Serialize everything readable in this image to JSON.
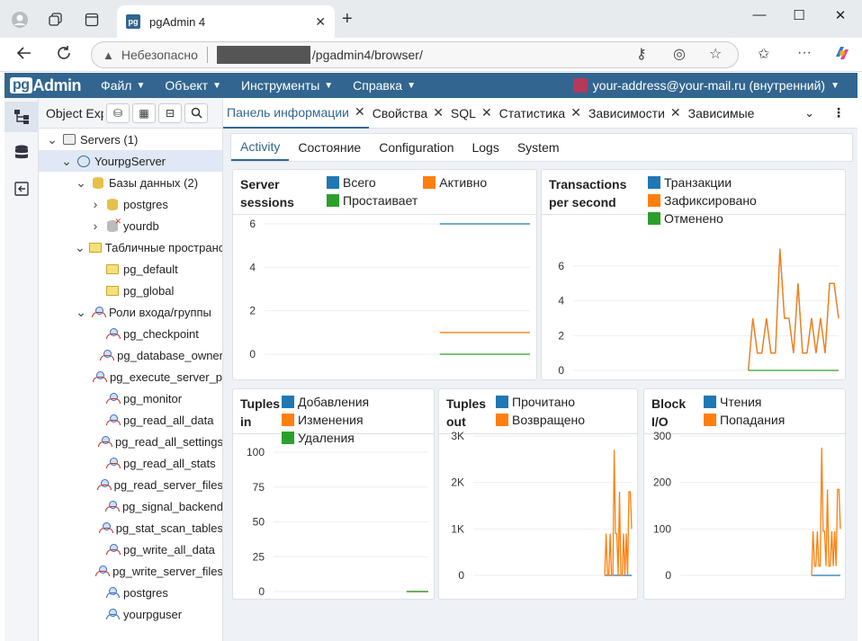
{
  "browser": {
    "tab_title": "pgAdmin 4",
    "tab_icon_text": "pg",
    "security_label": "Небезопасно",
    "url_path": "/pgadmin4/browser/"
  },
  "header": {
    "logo_pg": "pg",
    "logo_admin": "Admin",
    "menus": [
      "Файл",
      "Объект",
      "Инструменты",
      "Справка"
    ],
    "user": "your-address@your-mail.ru (внутренний)"
  },
  "explorer": {
    "tab_label": "Object Explorer",
    "tree": [
      {
        "label": "Servers (1)",
        "depth": 0,
        "toggle": "v",
        "icon": "server"
      },
      {
        "label": "YourpgServer",
        "depth": 1,
        "toggle": "v",
        "icon": "elephant",
        "selected": true
      },
      {
        "label": "Базы данных (2)",
        "depth": 2,
        "toggle": "v",
        "icon": "db"
      },
      {
        "label": "postgres",
        "depth": 3,
        "toggle": ">",
        "icon": "db"
      },
      {
        "label": "yourdb",
        "depth": 3,
        "toggle": ">",
        "icon": "db-x"
      },
      {
        "label": "Табличные пространства",
        "depth": 2,
        "toggle": "v",
        "icon": "folder"
      },
      {
        "label": "pg_default",
        "depth": 3,
        "toggle": "",
        "icon": "folder"
      },
      {
        "label": "pg_global",
        "depth": 3,
        "toggle": "",
        "icon": "folder"
      },
      {
        "label": "Роли входа/группы",
        "depth": 2,
        "toggle": "v",
        "icon": "role"
      },
      {
        "label": "pg_checkpoint",
        "depth": 3,
        "toggle": "",
        "icon": "role"
      },
      {
        "label": "pg_database_owner",
        "depth": 3,
        "toggle": "",
        "icon": "role"
      },
      {
        "label": "pg_execute_server_program",
        "depth": 3,
        "toggle": "",
        "icon": "role"
      },
      {
        "label": "pg_monitor",
        "depth": 3,
        "toggle": "",
        "icon": "role"
      },
      {
        "label": "pg_read_all_data",
        "depth": 3,
        "toggle": "",
        "icon": "role"
      },
      {
        "label": "pg_read_all_settings",
        "depth": 3,
        "toggle": "",
        "icon": "role"
      },
      {
        "label": "pg_read_all_stats",
        "depth": 3,
        "toggle": "",
        "icon": "role"
      },
      {
        "label": "pg_read_server_files",
        "depth": 3,
        "toggle": "",
        "icon": "role"
      },
      {
        "label": "pg_signal_backend",
        "depth": 3,
        "toggle": "",
        "icon": "role"
      },
      {
        "label": "pg_stat_scan_tables",
        "depth": 3,
        "toggle": "",
        "icon": "role"
      },
      {
        "label": "pg_write_all_data",
        "depth": 3,
        "toggle": "",
        "icon": "role"
      },
      {
        "label": "pg_write_server_files",
        "depth": 3,
        "toggle": "",
        "icon": "role"
      },
      {
        "label": "postgres",
        "depth": 3,
        "toggle": "",
        "icon": "user"
      },
      {
        "label": "yourpguser",
        "depth": 3,
        "toggle": "",
        "icon": "user"
      }
    ]
  },
  "main_tabs": [
    "Панель информации",
    "Свойства",
    "SQL",
    "Статистика",
    "Зависимости",
    "Зависимые"
  ],
  "sub_tabs": [
    "Activity",
    "Состояние",
    "Configuration",
    "Logs",
    "System"
  ],
  "colors": {
    "blue": "#1f77b4",
    "orange": "#ff7f0e",
    "green": "#2ca02c",
    "brand": "#326690"
  },
  "chart_data": [
    {
      "type": "line",
      "title_lines": [
        "Server",
        "sessions"
      ],
      "yticks": [
        "6",
        "4",
        "2",
        "0"
      ],
      "ylim": [
        0,
        6
      ],
      "series": [
        {
          "name": "Всего",
          "values": [
            6,
            6,
            6,
            6,
            6,
            6,
            6,
            6,
            6,
            6,
            6,
            6,
            6,
            6,
            6,
            6,
            6,
            6,
            6,
            6
          ]
        },
        {
          "name": "Активно",
          "values": [
            1,
            1,
            1,
            1,
            1,
            1,
            1,
            1,
            1,
            1,
            1,
            1,
            1,
            1,
            1,
            1,
            1,
            1,
            1,
            1
          ]
        },
        {
          "name": "Простаивает",
          "values": [
            0,
            0,
            0,
            0,
            0,
            0,
            0,
            0,
            0,
            0,
            0,
            0,
            0,
            0,
            0,
            0,
            0,
            0,
            0,
            0
          ]
        }
      ]
    },
    {
      "type": "line",
      "title_lines": [
        "Transactions",
        "per second"
      ],
      "yticks": [
        "6",
        "4",
        "2",
        "0"
      ],
      "ylim": [
        0,
        7.5
      ],
      "series": [
        {
          "name": "Транзакции",
          "values": [
            0,
            3,
            1,
            1,
            3,
            1,
            1,
            7,
            3,
            3,
            1,
            5,
            1,
            1,
            3,
            1,
            3,
            1,
            5,
            5,
            3
          ]
        },
        {
          "name": "Зафиксировано",
          "values": [
            0,
            3,
            1,
            1,
            3,
            1,
            1,
            7,
            3,
            3,
            1,
            5,
            1,
            1,
            3,
            1,
            3,
            1,
            5,
            5,
            3
          ]
        },
        {
          "name": "Отменено",
          "values": [
            0,
            0,
            0,
            0,
            0,
            0,
            0,
            0,
            0,
            0,
            0,
            0,
            0,
            0,
            0,
            0,
            0,
            0,
            0,
            0,
            0
          ]
        }
      ]
    },
    {
      "type": "line",
      "title_lines": [
        "Tuples",
        "in"
      ],
      "yticks": [
        "100",
        "75",
        "50",
        "25",
        "0"
      ],
      "ylim": [
        0,
        100
      ],
      "series": [
        {
          "name": "Добавления",
          "values": [
            0,
            0,
            0,
            0,
            0,
            0,
            0,
            0,
            0,
            0
          ]
        },
        {
          "name": "Изменения",
          "values": [
            0,
            0,
            0,
            0,
            0,
            0,
            0,
            0,
            0,
            0
          ]
        },
        {
          "name": "Удаления",
          "values": [
            0,
            0,
            0,
            0,
            0,
            0,
            0,
            0,
            0,
            0
          ]
        }
      ]
    },
    {
      "type": "line",
      "title_lines": [
        "Tuples",
        "out"
      ],
      "yticks": [
        "3K",
        "2K",
        "1K",
        "0"
      ],
      "ylim": [
        0,
        3000
      ],
      "series": [
        {
          "name": "Прочитано",
          "values": [
            0,
            0,
            0,
            0,
            0,
            0,
            0,
            0,
            0,
            0,
            0,
            0,
            0,
            0,
            0,
            0,
            0,
            0,
            0,
            0,
            0
          ]
        },
        {
          "name": "Возвращено",
          "values": [
            0,
            900,
            0,
            0,
            900,
            0,
            0,
            2700,
            900,
            900,
            0,
            1800,
            0,
            0,
            900,
            0,
            900,
            0,
            1800,
            1800,
            1000
          ]
        }
      ]
    },
    {
      "type": "line",
      "title_lines": [
        "Block",
        "I/O"
      ],
      "yticks": [
        "300",
        "200",
        "100",
        "0"
      ],
      "ylim": [
        0,
        300
      ],
      "series": [
        {
          "name": "Чтения",
          "values": [
            0,
            0,
            0,
            0,
            0,
            0,
            0,
            0,
            0,
            0,
            0,
            0,
            0,
            0,
            0,
            0,
            0,
            0,
            0,
            0,
            0
          ]
        },
        {
          "name": "Попадания",
          "values": [
            0,
            95,
            20,
            20,
            95,
            20,
            20,
            275,
            95,
            95,
            20,
            185,
            20,
            20,
            95,
            20,
            95,
            20,
            185,
            185,
            100
          ]
        }
      ]
    }
  ]
}
